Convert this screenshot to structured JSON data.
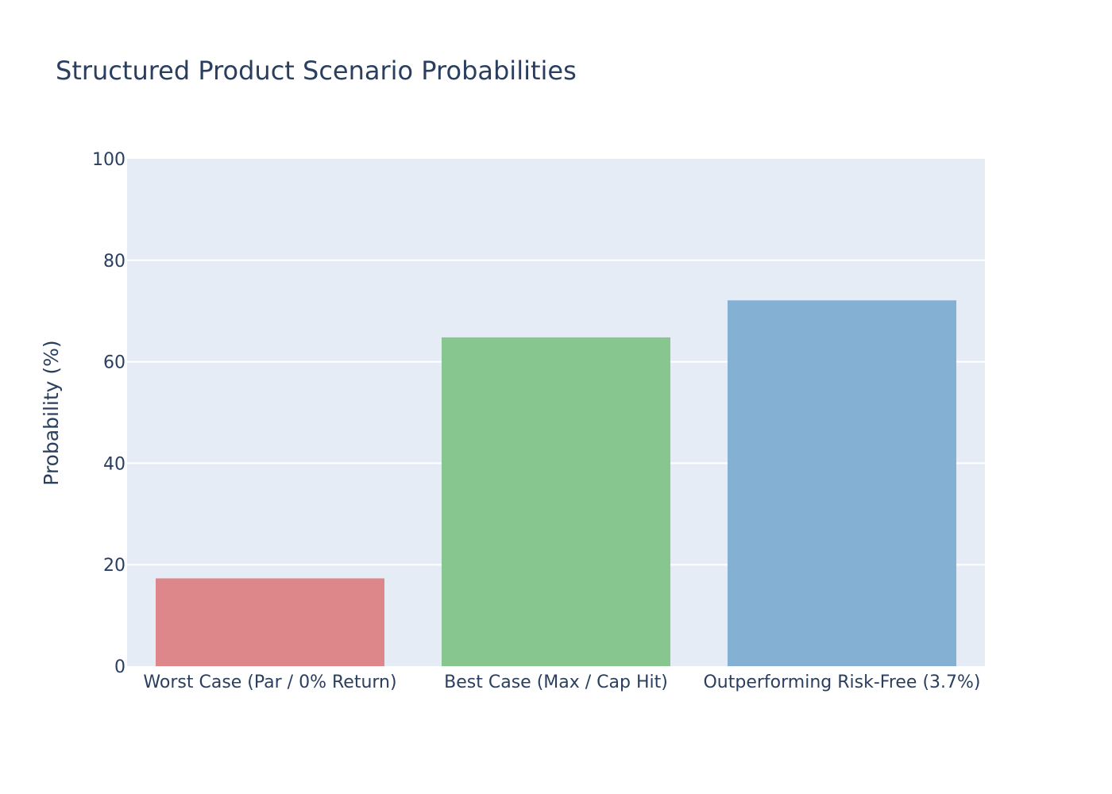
{
  "chart_data": {
    "type": "bar",
    "title": "Structured Product Scenario Probabilities",
    "xlabel": "",
    "ylabel": "Probability (%)",
    "categories": [
      "Worst Case (Par / 0% Return)",
      "Best Case (Max / Cap Hit)",
      "Outperforming Risk-Free (3.7%)"
    ],
    "values": [
      17.3,
      64.8,
      72.1
    ],
    "colors": [
      "#de878b",
      "#88c690",
      "#84b0d4"
    ],
    "ylim": [
      0,
      100
    ],
    "yticks": [
      0,
      20,
      40,
      60,
      80,
      100
    ],
    "ytick_labels": [
      "0",
      "20",
      "40",
      "60",
      "80",
      "100"
    ],
    "grid": true,
    "legend": "none",
    "plot_background": "#e5ecf6",
    "text_color": "#2a3f5f"
  }
}
